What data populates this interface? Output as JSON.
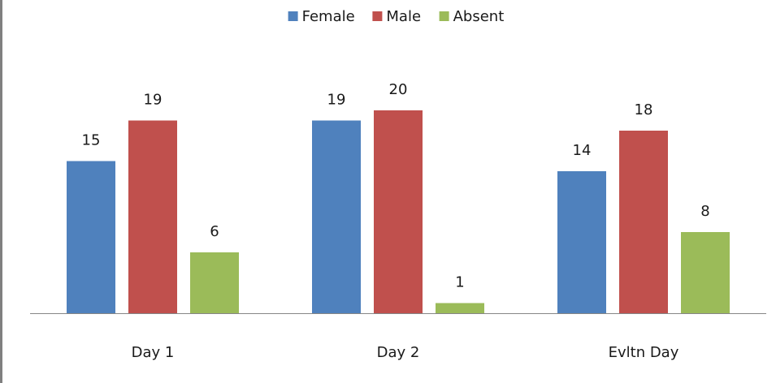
{
  "chart_data": {
    "type": "bar",
    "title": "",
    "xlabel": "",
    "ylabel": "",
    "categories": [
      "Day 1",
      "Day 2",
      "Evltn Day"
    ],
    "series": [
      {
        "name": "Female",
        "values": [
          15,
          19,
          14
        ],
        "color": "#4f81bd"
      },
      {
        "name": "Male",
        "values": [
          19,
          20,
          18
        ],
        "color": "#c0504d"
      },
      {
        "name": "Absent",
        "values": [
          6,
          1,
          8
        ],
        "color": "#9bbb59"
      }
    ],
    "ylim": [
      0,
      20
    ],
    "grid": false,
    "data_labels": true,
    "legend_position": "top"
  }
}
